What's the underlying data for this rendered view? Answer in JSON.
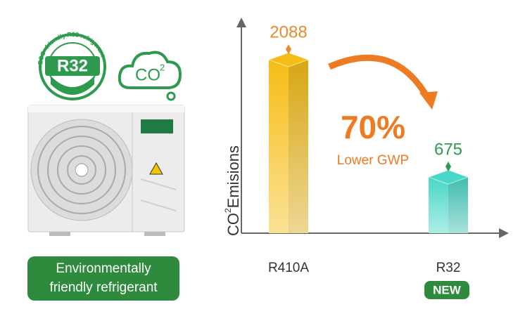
{
  "chart_data": {
    "type": "bar",
    "y_label": [
      "CO",
      "2",
      "Emisions"
    ],
    "categories": [
      "R410A",
      "R32"
    ],
    "values": [
      2088,
      675
    ],
    "colors": [
      "#f6bd16",
      "#49d8c8"
    ],
    "value_label_colors": [
      "#ea8a2c",
      "#2e9a4e"
    ],
    "ylim": [
      0,
      2300
    ],
    "annotations": {
      "reduction": "70%",
      "reduction_note": "Lower GWP",
      "new_badge": "NEW",
      "logo_ring": "ECO- friendly R32 refrigerant",
      "logo_label": "R32",
      "cloud": [
        "CO",
        "2"
      ],
      "caption": [
        "Environmentally",
        "friendly refrigerant"
      ]
    }
  }
}
